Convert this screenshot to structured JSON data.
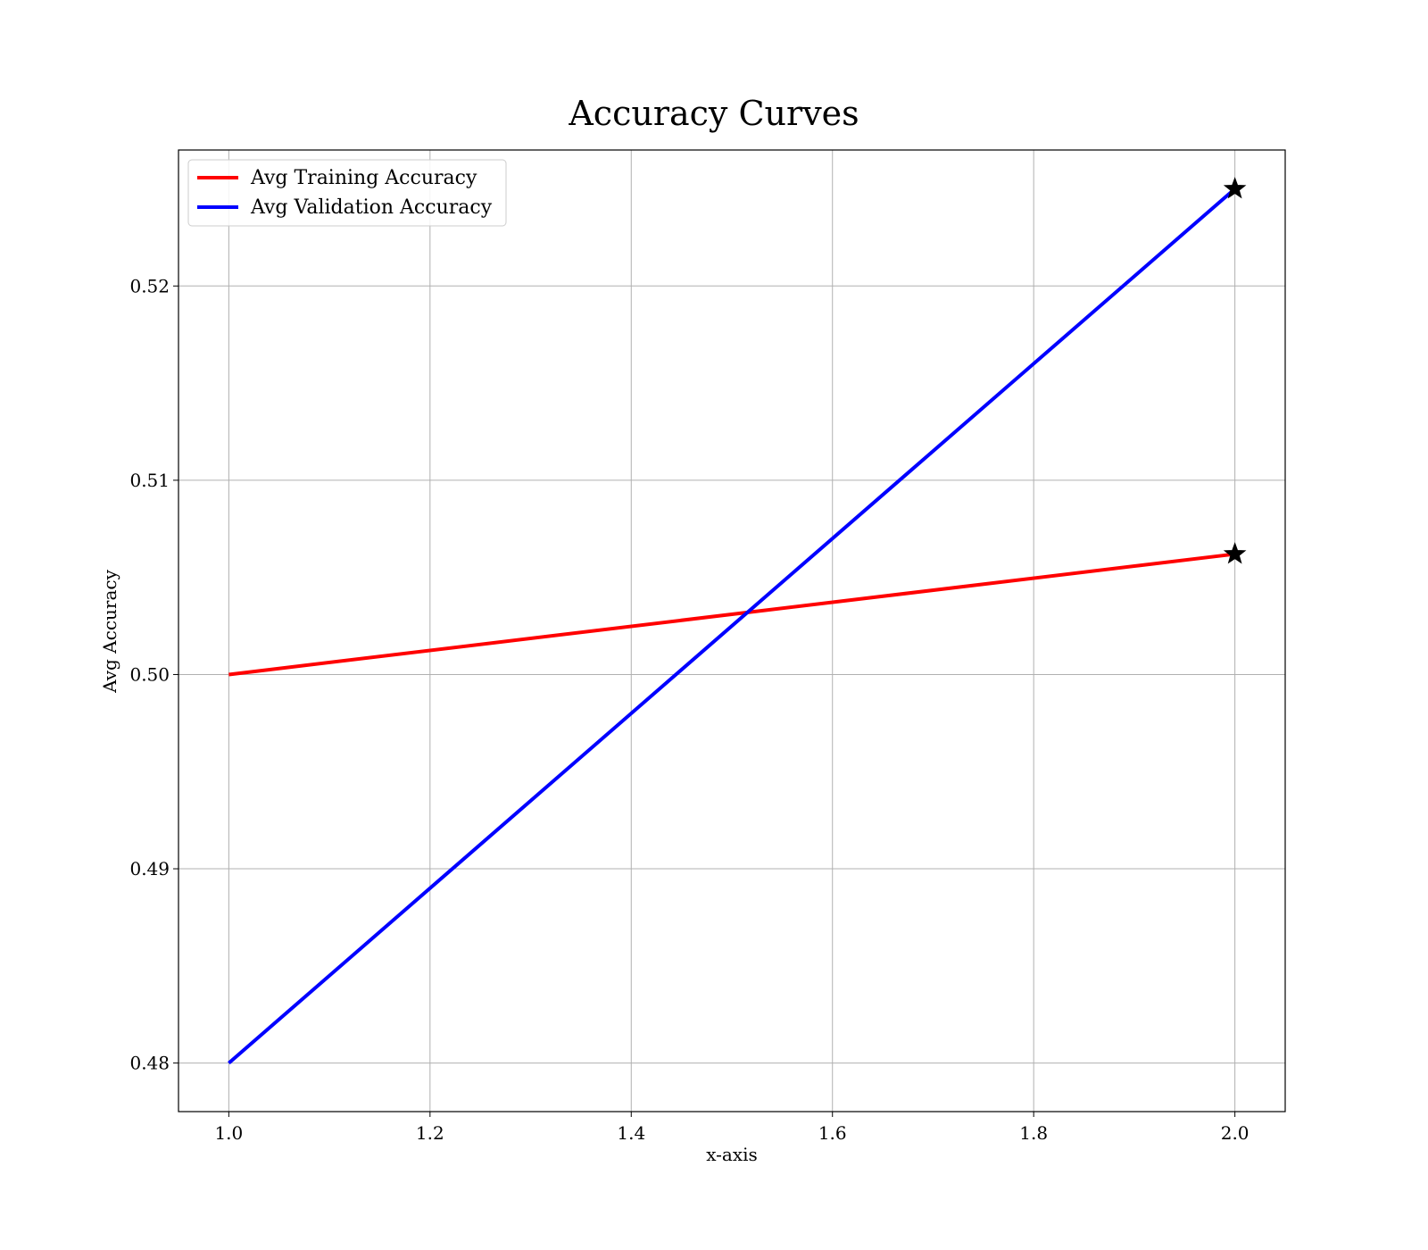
{
  "chart_data": {
    "type": "line",
    "title": "Accuracy Curves",
    "xlabel": "x-axis",
    "ylabel": "Avg Accuracy",
    "xlim": [
      0.95,
      2.05
    ],
    "ylim": [
      0.4775,
      0.527
    ],
    "xticks": [
      1.0,
      1.2,
      1.4,
      1.6,
      1.8,
      2.0
    ],
    "xtick_labels": [
      "1.0",
      "1.2",
      "1.4",
      "1.6",
      "1.8",
      "2.0"
    ],
    "yticks": [
      0.48,
      0.49,
      0.5,
      0.51,
      0.52
    ],
    "ytick_labels": [
      "0.48",
      "0.49",
      "0.50",
      "0.51",
      "0.52"
    ],
    "grid": true,
    "legend_position": "top-left",
    "series": [
      {
        "name": "Avg Training Accuracy",
        "color": "#ff0000",
        "x": [
          1.0,
          2.0
        ],
        "y": [
          0.5,
          0.5062
        ]
      },
      {
        "name": "Avg Validation Accuracy",
        "color": "#0000ff",
        "x": [
          1.0,
          2.0
        ],
        "y": [
          0.48,
          0.525
        ]
      }
    ],
    "best_markers": [
      {
        "series": "Avg Training Accuracy",
        "x": 2.0,
        "y": 0.5062,
        "marker": "star-icon"
      },
      {
        "series": "Avg Validation Accuracy",
        "x": 2.0,
        "y": 0.525,
        "marker": "star-icon"
      }
    ]
  }
}
